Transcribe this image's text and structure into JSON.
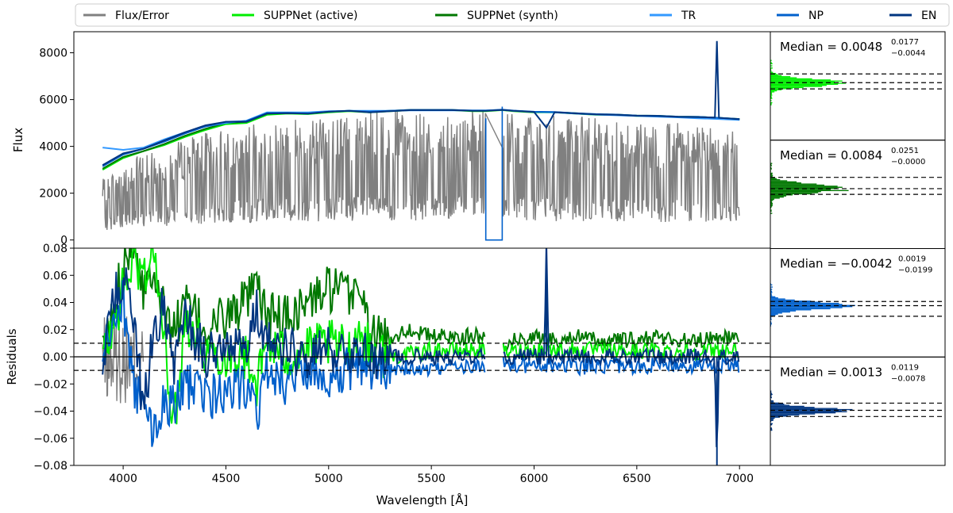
{
  "chart_data": [
    {
      "panel": "spectrum",
      "type": "line",
      "xlabel": "",
      "ylabel": "Flux",
      "xlim": [
        3760,
        7150
      ],
      "ylim": [
        -350,
        8900
      ],
      "yticks": [
        0,
        2000,
        4000,
        6000,
        8000
      ],
      "ytick_labels": [
        "0",
        "2000",
        "4000",
        "6000",
        "8000"
      ],
      "grid": false,
      "series": [
        {
          "name": "Flux/Error",
          "color": "#808080",
          "upper_x": [
            3900,
            4000,
            4100,
            4200,
            4300,
            4400,
            4500,
            4600,
            4700,
            4800,
            4900,
            5000,
            5100,
            5200,
            5300,
            5400,
            5500,
            5600,
            5700,
            5765,
            5845,
            5900,
            6000,
            6100,
            6200,
            6300,
            6400,
            6500,
            6600,
            6700,
            6800,
            6900,
            7000
          ],
          "upper_y": [
            2600,
            3400,
            3700,
            4000,
            4300,
            4600,
            4800,
            4900,
            5100,
            5200,
            5250,
            5350,
            5400,
            5450,
            5500,
            5500,
            5500,
            5500,
            5500,
            5500,
            5500,
            5450,
            5400,
            5350,
            5300,
            5250,
            5200,
            5150,
            5100,
            5050,
            5000,
            4850,
            4800
          ],
          "gap_x": [
            5765,
            5845
          ],
          "gap_y": 0
        },
        {
          "name": "SUPPNet (active)",
          "color": "#00ee00",
          "x": [
            3900,
            4000,
            4100,
            4200,
            4300,
            4400,
            4500,
            4600,
            4700,
            4800,
            4900,
            5000,
            5100,
            5200,
            5300,
            5400,
            5500,
            5600,
            5700,
            5765,
            5845,
            5900,
            6000,
            6100,
            6200,
            6300,
            6400,
            6500,
            6600,
            6700,
            6800,
            6900,
            7000
          ],
          "y": [
            3000,
            3500,
            3800,
            4050,
            4400,
            4700,
            4950,
            5000,
            5350,
            5400,
            5380,
            5450,
            5500,
            5450,
            5500,
            5550,
            5550,
            5550,
            5500,
            5500,
            5550,
            5500,
            5450,
            5450,
            5400,
            5350,
            5350,
            5300,
            5300,
            5250,
            5250,
            5200,
            5150
          ]
        },
        {
          "name": "SUPPNet (synth)",
          "color": "#007700",
          "x": [
            3900,
            4000,
            4100,
            4200,
            4300,
            4400,
            4500,
            4600,
            4700,
            4800,
            4900,
            5000,
            5100,
            5200,
            5300,
            5400,
            5500,
            5600,
            5700,
            5765,
            5845,
            5900,
            6000,
            6100,
            6200,
            6300,
            6400,
            6500,
            6600,
            6700,
            6800,
            6900,
            7000
          ],
          "y": [
            3050,
            3550,
            3800,
            4100,
            4450,
            4750,
            5000,
            5050,
            5400,
            5420,
            5400,
            5480,
            5520,
            5480,
            5520,
            5560,
            5560,
            5560,
            5520,
            5520,
            5560,
            5520,
            5470,
            5460,
            5420,
            5370,
            5360,
            5320,
            5310,
            5270,
            5260,
            5220,
            5170
          ]
        },
        {
          "name": "TR",
          "color": "#3399ff",
          "x": [
            3900,
            4000,
            4100,
            4200,
            4300,
            4400,
            4500,
            4600,
            4700,
            4800,
            4900,
            5000,
            5100,
            5200,
            5300,
            5400,
            5500,
            5600,
            5700,
            5765,
            5845,
            5900,
            6000,
            6100,
            6200,
            6300,
            6400,
            6500,
            6600,
            6700,
            6800,
            6900,
            7000
          ],
          "y": [
            3950,
            3850,
            3950,
            4300,
            4600,
            4850,
            5000,
            5100,
            5450,
            5450,
            5450,
            5500,
            5520,
            5520,
            5520,
            5540,
            5540,
            5540,
            5540,
            5540,
            5560,
            5520,
            5470,
            5450,
            5400,
            5360,
            5330,
            5300,
            5270,
            5240,
            5200,
            5170,
            5130
          ]
        },
        {
          "name": "NP",
          "color": "#0060cc",
          "x": [
            3900,
            4000,
            4100,
            4200,
            4300,
            4400,
            4500,
            4600,
            4700,
            4800,
            4900,
            5000,
            5100,
            5200,
            5300,
            5400,
            5500,
            5600,
            5700,
            5765,
            5845,
            5900,
            6000,
            6100,
            6200,
            6300,
            6400,
            6500,
            6600,
            6700,
            6800,
            6900,
            7000
          ],
          "y": [
            3150,
            3650,
            3900,
            4200,
            4550,
            4850,
            5050,
            5080,
            5420,
            5430,
            5400,
            5480,
            5520,
            5480,
            5520,
            5560,
            5560,
            5560,
            5530,
            5530,
            5570,
            5530,
            5480,
            5470,
            5420,
            5380,
            5360,
            5320,
            5310,
            5270,
            5260,
            5220,
            5170
          ]
        },
        {
          "name": "EN",
          "color": "#003580",
          "x": [
            3900,
            4000,
            4100,
            4200,
            4300,
            4400,
            4500,
            4600,
            4700,
            4800,
            4900,
            5000,
            5100,
            5200,
            5300,
            5400,
            5500,
            5600,
            5700,
            5765,
            5845,
            5900,
            6000,
            6060,
            6100,
            6200,
            6300,
            6400,
            6500,
            6600,
            6700,
            6800,
            6880,
            6890,
            6900,
            7000
          ],
          "y": [
            3200,
            3700,
            3900,
            4250,
            4600,
            4900,
            5050,
            5050,
            5400,
            5420,
            5400,
            5480,
            5520,
            5450,
            5500,
            5550,
            5550,
            5550,
            5520,
            5520,
            5560,
            5520,
            5470,
            4800,
            5460,
            5410,
            5370,
            5350,
            5310,
            5300,
            5260,
            5250,
            5230,
            8500,
            5220,
            5160
          ]
        }
      ]
    },
    {
      "panel": "residuals",
      "type": "line",
      "xlabel": "Wavelength [Å]",
      "ylabel": "Residuals",
      "xlim": [
        3760,
        7150
      ],
      "ylim": [
        -0.08,
        0.08
      ],
      "xticks": [
        4000,
        4500,
        5000,
        5500,
        6000,
        6500,
        7000
      ],
      "xtick_labels": [
        "4000",
        "4500",
        "5000",
        "5500",
        "6000",
        "6500",
        "7000"
      ],
      "yticks": [
        -0.08,
        -0.06,
        -0.04,
        -0.02,
        0.0,
        0.02,
        0.04,
        0.06,
        0.08
      ],
      "ytick_labels": [
        "−0.08",
        "−0.06",
        "−0.04",
        "−0.02",
        "0.00",
        "0.02",
        "0.04",
        "0.06",
        "0.08"
      ],
      "reference_lines": [
        -0.01,
        0.0,
        0.01
      ],
      "gap_x": [
        5765,
        5845
      ],
      "series": [
        {
          "name": "Flux/Error",
          "color": "#808080",
          "band_x": [
            3900,
            4100
          ],
          "band": [
            -0.035,
            0.03
          ]
        },
        {
          "name": "SUPPNet (synth)",
          "color": "#007700",
          "x": [
            3900,
            3950,
            4000,
            4050,
            4100,
            4150,
            4200,
            4250,
            4300,
            4400,
            4500,
            4600,
            4650,
            4700,
            4800,
            4900,
            5000,
            5100,
            5150,
            5200,
            5300,
            5400,
            5500,
            5600,
            5700,
            5765,
            5845,
            5900,
            6000,
            6100,
            6200,
            6300,
            6400,
            6500,
            6600,
            6700,
            6800,
            6900,
            7000
          ],
          "y": [
            0.0,
            0.03,
            0.07,
            0.09,
            0.05,
            0.07,
            0.03,
            0.02,
            0.04,
            0.02,
            0.03,
            0.04,
            0.05,
            0.03,
            0.03,
            0.04,
            0.05,
            0.045,
            0.055,
            0.015,
            0.015,
            0.02,
            0.015,
            0.015,
            0.015,
            0.015,
            0.01,
            0.012,
            0.015,
            0.012,
            0.015,
            0.012,
            0.012,
            0.012,
            0.015,
            0.012,
            0.012,
            0.015,
            0.012
          ]
        },
        {
          "name": "SUPPNet (active)",
          "color": "#00ee00",
          "x": [
            3900,
            3950,
            4000,
            4050,
            4100,
            4150,
            4200,
            4250,
            4300,
            4400,
            4500,
            4600,
            4650,
            4700,
            4800,
            4900,
            5000,
            5100,
            5150,
            5200,
            5300,
            5400,
            5500,
            5600,
            5700,
            5765,
            5845,
            5900,
            6000,
            6100,
            6200,
            6300,
            6400,
            6500,
            6600,
            6700,
            6800,
            6900,
            7000
          ],
          "y": [
            0.0,
            0.02,
            0.05,
            0.07,
            0.06,
            0.08,
            0.01,
            -0.05,
            0.03,
            0.005,
            0.0,
            0.0,
            -0.02,
            0.01,
            0.0,
            0.005,
            0.01,
            0.005,
            0.02,
            0.005,
            0.0,
            0.002,
            0.005,
            0.005,
            0.005,
            0.005,
            0.004,
            0.004,
            0.005,
            0.005,
            0.005,
            0.005,
            0.004,
            0.004,
            0.005,
            0.004,
            0.004,
            0.005,
            0.004
          ]
        },
        {
          "name": "NP",
          "color": "#0060cc",
          "x": [
            3900,
            3950,
            4000,
            4050,
            4100,
            4150,
            4200,
            4250,
            4300,
            4400,
            4500,
            4600,
            4650,
            4700,
            4800,
            4900,
            5000,
            5100,
            5150,
            5200,
            5300,
            5400,
            5500,
            5600,
            5700,
            5765,
            5845,
            5900,
            6000,
            6100,
            6200,
            6300,
            6400,
            6500,
            6600,
            6700,
            6800,
            6900,
            7000
          ],
          "y": [
            0.0,
            0.02,
            0.04,
            -0.02,
            -0.04,
            -0.06,
            -0.03,
            -0.04,
            -0.02,
            -0.03,
            -0.03,
            -0.02,
            -0.04,
            -0.01,
            -0.02,
            -0.01,
            -0.015,
            -0.01,
            -0.005,
            -0.01,
            -0.008,
            -0.008,
            -0.01,
            -0.008,
            -0.008,
            -0.008,
            -0.006,
            -0.005,
            -0.008,
            -0.006,
            -0.008,
            -0.006,
            -0.006,
            -0.008,
            -0.006,
            -0.006,
            -0.008,
            -0.006,
            -0.006
          ]
        },
        {
          "name": "EN",
          "color": "#003580",
          "x": [
            3900,
            3950,
            4000,
            4050,
            4100,
            4150,
            4200,
            4250,
            4300,
            4400,
            4500,
            4600,
            4650,
            4700,
            4800,
            4900,
            5000,
            5100,
            5150,
            5200,
            5300,
            5400,
            5500,
            5600,
            5700,
            5765,
            5845,
            5900,
            6000,
            6050,
            6060,
            6070,
            6100,
            6200,
            6300,
            6400,
            6500,
            6600,
            6700,
            6800,
            6880,
            6890,
            6900,
            7000
          ],
          "y": [
            0.0,
            0.04,
            0.06,
            0.02,
            -0.04,
            0.02,
            0.04,
            -0.01,
            0.03,
            0.0,
            0.01,
            0.005,
            0.04,
            0.01,
            0.005,
            0.0,
            0.005,
            0.005,
            0.01,
            0.0,
            0.0,
            0.0,
            0.0,
            0.0,
            0.0,
            0.0,
            0.0,
            0.0,
            0.0,
            0.0,
            0.08,
            0.0,
            0.0,
            0.0,
            0.0,
            0.0,
            0.0,
            0.0,
            0.0,
            0.0,
            0.0,
            -0.08,
            0.0,
            0.0
          ]
        }
      ]
    },
    {
      "panel": "histograms",
      "type": "bar",
      "orientation": "horizontal",
      "grid": false,
      "histograms": [
        {
          "series": "SUPPNet (active)",
          "color": "#00ee00",
          "value_range": [
            -0.08,
            0.08
          ],
          "peak": 0.0048,
          "lower": -0.0044,
          "upper": 0.0177
        },
        {
          "series": "SUPPNet (synth)",
          "color": "#007700",
          "value_range": [
            -0.08,
            0.08
          ],
          "peak": 0.0084,
          "lower": -0.0,
          "upper": 0.0251
        },
        {
          "series": "NP",
          "color": "#0060cc",
          "value_range": [
            -0.08,
            0.08
          ],
          "peak": -0.0042,
          "lower": -0.0199,
          "upper": 0.0019
        },
        {
          "series": "EN",
          "color": "#003580",
          "value_range": [
            -0.08,
            0.08
          ],
          "peak": 0.0013,
          "lower": -0.0078,
          "upper": 0.0119
        }
      ]
    }
  ],
  "legend": {
    "placement": "top",
    "entries": [
      {
        "label": "Flux/Error",
        "color": "#808080"
      },
      {
        "label": "SUPPNet (active)",
        "color": "#00ee00"
      },
      {
        "label": "SUPPNet (synth)",
        "color": "#007700"
      },
      {
        "label": "TR",
        "color": "#3399ff"
      },
      {
        "label": "NP",
        "color": "#0060cc"
      },
      {
        "label": "EN",
        "color": "#003580"
      }
    ]
  },
  "medians": [
    {
      "prefix": "Median = ",
      "value": "0.0048",
      "sup": "0.0177",
      "sub": "−0.0044"
    },
    {
      "prefix": "Median = ",
      "value": "0.0084",
      "sup": "0.0251",
      "sub": "−0.0000"
    },
    {
      "prefix": "Median = ",
      "value": "−0.0042",
      "sup": "0.0019",
      "sub": "−0.0199"
    },
    {
      "prefix": "Median = ",
      "value": "0.0013",
      "sup": "0.0119",
      "sub": "−0.0078"
    }
  ]
}
